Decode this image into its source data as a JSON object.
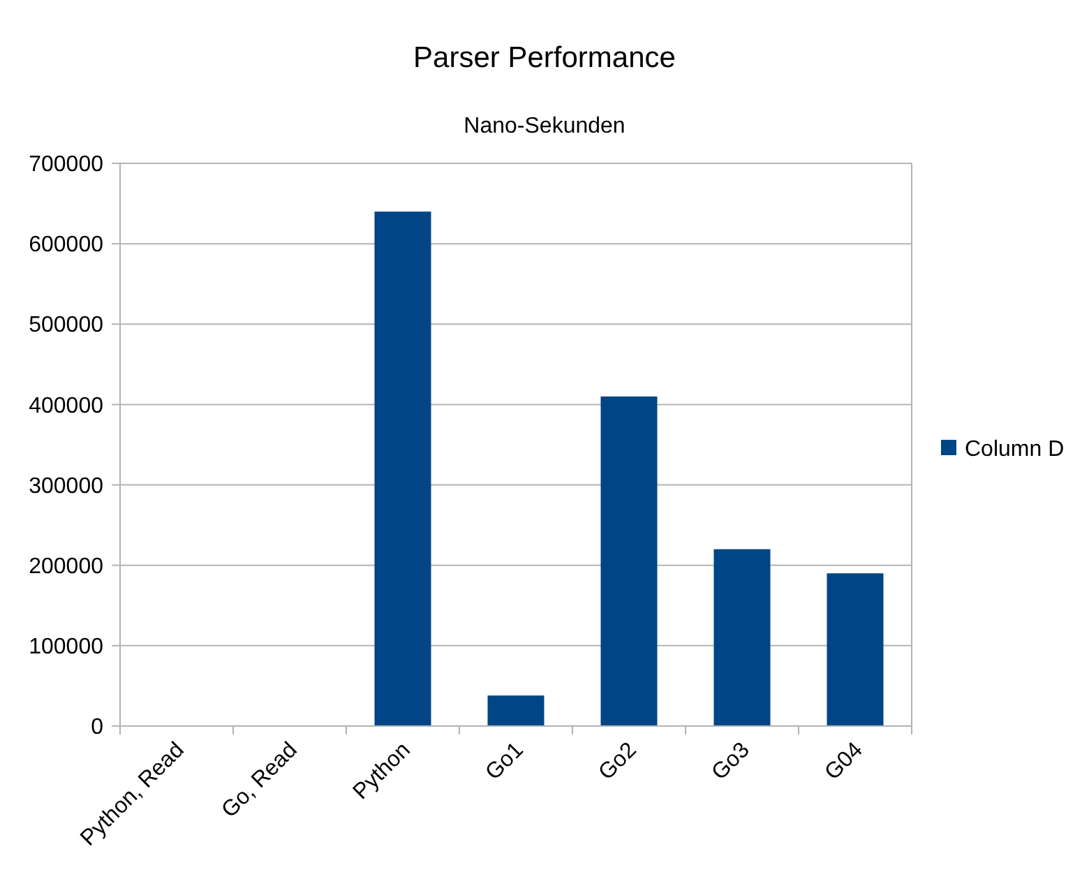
{
  "chart_data": {
    "type": "bar",
    "title": "Parser Performance",
    "subtitle": "Nano-Sekunden",
    "categories": [
      "Python, Read",
      "Go, Read",
      "Python",
      "Go1",
      "Go2",
      "Go3",
      "G04"
    ],
    "series": [
      {
        "name": "Column D",
        "color": "#004586",
        "values": [
          0,
          0,
          640000,
          38000,
          410000,
          220000,
          190000
        ]
      }
    ],
    "ylim": [
      0,
      700000
    ],
    "yticks": [
      0,
      100000,
      200000,
      300000,
      400000,
      500000,
      600000,
      700000
    ],
    "grid": "y",
    "legend": "right"
  }
}
